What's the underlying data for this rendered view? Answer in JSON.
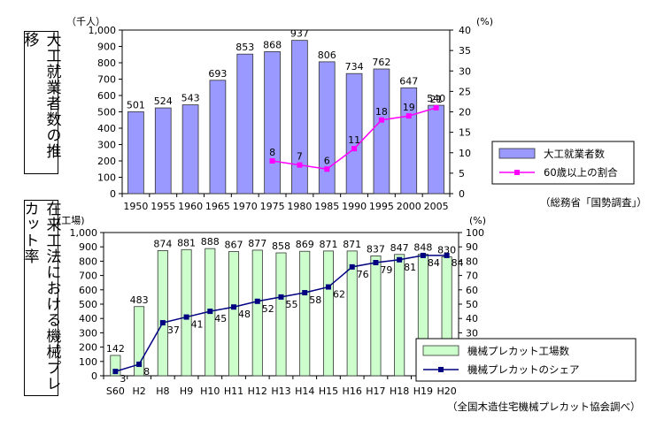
{
  "panel_titles": {
    "top": "大工就業者数の推移",
    "bottom": "在来工法における機械プレカット率"
  },
  "colors": {
    "bar_top": "#9999ff",
    "bar_bottom": "#ccffcc",
    "line_top": "#ff00ff",
    "line_bottom": "#000080"
  },
  "chart_data": [
    {
      "type": "bar",
      "title": "大工就業者数の推移",
      "y_unit_left": "（千人）",
      "y_unit_right": "(%)",
      "categories": [
        "1950",
        "1955",
        "1960",
        "1965",
        "1970",
        "1975",
        "1980",
        "1985",
        "1990",
        "1995",
        "2000",
        "2005"
      ],
      "ylim_left": [
        0,
        1000
      ],
      "yticks_left": [
        "0",
        "100",
        "200",
        "300",
        "400",
        "500",
        "600",
        "700",
        "800",
        "900",
        "1,000"
      ],
      "ylim_right": [
        0,
        40
      ],
      "yticks_right": [
        "0",
        "5",
        "10",
        "15",
        "20",
        "25",
        "30",
        "35",
        "40"
      ],
      "series": [
        {
          "name": "大工就業者数",
          "type": "bar",
          "axis": "left",
          "values": [
            501,
            524,
            543,
            693,
            853,
            868,
            937,
            806,
            734,
            762,
            647,
            540
          ]
        },
        {
          "name": "60歳以上の割合",
          "type": "line",
          "axis": "right",
          "values": [
            null,
            null,
            null,
            null,
            null,
            8,
            7,
            6,
            11,
            18,
            19,
            21
          ]
        }
      ],
      "legend_position": "right",
      "source": "（総務省「国勢調査」）",
      "grid": false
    },
    {
      "type": "bar",
      "title": "在来工法における機械プレカット率",
      "y_unit_left": "(工場)",
      "y_unit_right": "(%)",
      "categories": [
        "S60",
        "H2",
        "H8",
        "H9",
        "H10",
        "H11",
        "H12",
        "H13",
        "H14",
        "H15",
        "H16",
        "H17",
        "H18",
        "H19",
        "H20"
      ],
      "ylim_left": [
        0,
        1000
      ],
      "yticks_left": [
        "0",
        "100",
        "200",
        "300",
        "400",
        "500",
        "600",
        "700",
        "800",
        "900",
        "1,000"
      ],
      "ylim_right": [
        0,
        100
      ],
      "yticks_right": [
        "0",
        "10",
        "20",
        "30",
        "40",
        "50",
        "60",
        "70",
        "80",
        "90",
        "100"
      ],
      "series": [
        {
          "name": "機械プレカット工場数",
          "type": "bar",
          "axis": "left",
          "values": [
            142,
            483,
            874,
            881,
            888,
            867,
            877,
            858,
            869,
            871,
            871,
            837,
            847,
            848,
            830
          ]
        },
        {
          "name": "機械プレカットのシェア",
          "type": "line",
          "axis": "right",
          "values": [
            3,
            8,
            37,
            41,
            45,
            48,
            52,
            55,
            58,
            62,
            76,
            79,
            81,
            84,
            84
          ]
        }
      ],
      "legend_position": "right",
      "source": "（全国木造住宅機械プレカット協会調べ）",
      "grid": false
    }
  ]
}
